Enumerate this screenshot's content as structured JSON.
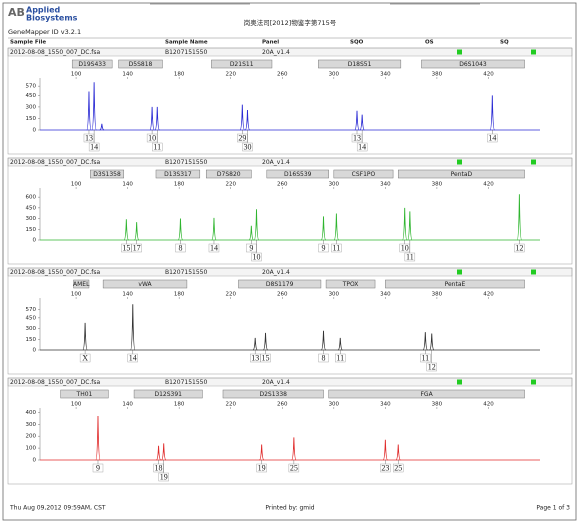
{
  "header": {
    "logo_mark": "AB",
    "logo_line1": "Applied",
    "logo_line2": "Biosystems",
    "version": "GeneMapper ID v3.2.1",
    "title": "岗奥法司[2012]物鉴字第715号",
    "columns": [
      "Sample File",
      "Sample Name",
      "Panel",
      "SQO",
      "OS",
      "SQ"
    ]
  },
  "footer": {
    "date": "Thu Aug 09,2012 09:59AM, CST",
    "printed_by": "Printed by: gmid",
    "page": "Page 1 of 3"
  },
  "chart_data": [
    {
      "type": "peaks",
      "sample_file": "2012-08-08_1550_007_DC.fsa",
      "sample_name": "B1207151550",
      "panel": "20A_v1.4",
      "color": "#2a2ad4",
      "xlim": [
        72,
        460
      ],
      "xticks": [
        100,
        140,
        180,
        220,
        260,
        300,
        340,
        380,
        420
      ],
      "ylim": [
        0,
        650
      ],
      "yticks": [
        0,
        150,
        300,
        450,
        570
      ],
      "loci": [
        {
          "name": "D19S433",
          "start": 97,
          "end": 128
        },
        {
          "name": "D5S818",
          "start": 133,
          "end": 167
        },
        {
          "name": "D21S11",
          "start": 205,
          "end": 252
        },
        {
          "name": "D18S51",
          "start": 288,
          "end": 352
        },
        {
          "name": "D6S1043",
          "start": 368,
          "end": 448
        }
      ],
      "x": [
        110,
        114,
        120,
        159,
        163,
        229,
        233,
        318,
        322,
        423
      ],
      "values": [
        500,
        620,
        80,
        300,
        300,
        330,
        260,
        250,
        200,
        450
      ],
      "alleles": [
        "13",
        "14",
        null,
        "10",
        "11",
        "29",
        "30",
        "13",
        "14",
        "14"
      ]
    },
    {
      "type": "peaks",
      "sample_file": "2012-08-08_1550_007_DC.fsa",
      "sample_name": "B1207151550",
      "panel": "20A_v1.4",
      "color": "#2fb52f",
      "xlim": [
        72,
        460
      ],
      "xticks": [
        100,
        140,
        180,
        220,
        260,
        300,
        340,
        380,
        420
      ],
      "ylim": [
        0,
        700
      ],
      "yticks": [
        0,
        150,
        300,
        450,
        600
      ],
      "loci": [
        {
          "name": "D3S1358",
          "start": 111,
          "end": 137
        },
        {
          "name": "D13S317",
          "start": 162,
          "end": 196
        },
        {
          "name": "D7S820",
          "start": 201,
          "end": 236
        },
        {
          "name": "D16S539",
          "start": 248,
          "end": 296
        },
        {
          "name": "CSF1PO",
          "start": 300,
          "end": 346
        },
        {
          "name": "PentaD",
          "start": 350,
          "end": 448
        }
      ],
      "x": [
        139,
        147,
        181,
        207,
        236,
        240,
        292,
        302,
        355,
        359,
        444
      ],
      "values": [
        290,
        250,
        300,
        310,
        200,
        430,
        330,
        370,
        450,
        400,
        640
      ],
      "alleles": [
        "15",
        "17",
        "8",
        "14",
        "9",
        "10",
        "9",
        "11",
        "10",
        "11",
        "12"
      ]
    },
    {
      "type": "peaks",
      "sample_file": "2012-08-08_1550_007_DC.fsa",
      "sample_name": "B1207151550",
      "panel": "20A_v1.4",
      "color": "#333333",
      "xlim": [
        72,
        460
      ],
      "xticks": [
        100,
        140,
        180,
        220,
        260,
        300,
        340,
        380,
        420
      ],
      "ylim": [
        0,
        700
      ],
      "yticks": [
        0,
        150,
        300,
        450,
        570
      ],
      "loci": [
        {
          "name": "AMEL",
          "start": 98,
          "end": 110
        },
        {
          "name": "vWA",
          "start": 121,
          "end": 186
        },
        {
          "name": "D8S1179",
          "start": 226,
          "end": 290
        },
        {
          "name": "TPOX",
          "start": 294,
          "end": 332
        },
        {
          "name": "PentaE",
          "start": 340,
          "end": 448
        }
      ],
      "x": [
        107,
        144,
        239,
        247,
        292,
        305,
        371,
        376
      ],
      "values": [
        380,
        640,
        170,
        240,
        270,
        170,
        250,
        230
      ],
      "alleles": [
        "X",
        "14",
        "13",
        "15",
        "8",
        "11",
        "11",
        "12"
      ]
    },
    {
      "type": "peaks",
      "sample_file": "2012-08-08_1550_007_DC.fsa",
      "sample_name": "B1207151550",
      "panel": "20A_v1.4",
      "color": "#e02a2a",
      "xlim": [
        72,
        460
      ],
      "xticks": [
        100,
        140,
        180,
        220,
        260,
        300,
        340,
        380,
        420
      ],
      "ylim": [
        0,
        420
      ],
      "yticks": [
        0,
        100,
        200,
        300,
        400
      ],
      "loci": [
        {
          "name": "TH01",
          "start": 88,
          "end": 125
        },
        {
          "name": "D12S391",
          "start": 145,
          "end": 198
        },
        {
          "name": "D2S1338",
          "start": 214,
          "end": 292
        },
        {
          "name": "FGA",
          "start": 296,
          "end": 448
        }
      ],
      "x": [
        117,
        164,
        168,
        244,
        269,
        340,
        350
      ],
      "values": [
        370,
        120,
        140,
        130,
        190,
        170,
        130
      ],
      "alleles": [
        "9",
        "18",
        "19",
        "19",
        "25",
        "23",
        "25"
      ]
    }
  ]
}
